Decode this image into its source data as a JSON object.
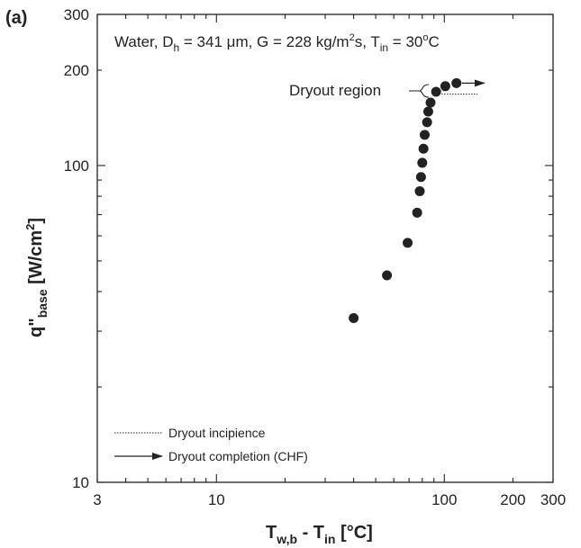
{
  "chart_data": {
    "type": "scatter",
    "panel_label": "(a)",
    "condition_text": {
      "prefix": "Water, D",
      "dh_sub": "h",
      "part2": " = 341 μm, G = 228 kg/m",
      "sup2": "2",
      "part3": "s, T",
      "tin_sub": "in",
      "part4": " = 30",
      "deg_sup": "o",
      "part5": "C"
    },
    "xlabel": {
      "t": "T",
      "sub1": "w,b",
      "mid": " - T",
      "sub2": "in",
      "unit": " [°C]"
    },
    "ylabel": {
      "q": "q\"",
      "sub": "base",
      "unit": " [W/cm",
      "sup": "2",
      "close": "]"
    },
    "x_scale": "log",
    "y_scale": "log",
    "xlim": [
      3,
      300
    ],
    "ylim": [
      10,
      300
    ],
    "x_ticks": [
      3,
      10,
      100,
      200,
      300
    ],
    "x_tick_labels": [
      "3",
      "10",
      "100",
      "200",
      "300"
    ],
    "y_ticks": [
      10,
      100,
      200,
      300
    ],
    "y_tick_labels": [
      "10",
      "100",
      "200",
      "300"
    ],
    "grid": false,
    "series": [
      {
        "points": [
          [
            40,
            33
          ],
          [
            56,
            45
          ],
          [
            69,
            57
          ],
          [
            76,
            71
          ],
          [
            78,
            83
          ],
          [
            79,
            92
          ],
          [
            80,
            102
          ],
          [
            81,
            113
          ],
          [
            82,
            125
          ],
          [
            84,
            137
          ],
          [
            85,
            148
          ],
          [
            87,
            158
          ],
          [
            92,
            171
          ],
          [
            101,
            178
          ],
          [
            113,
            182
          ]
        ]
      }
    ],
    "annotations": {
      "dryout_region_label": "Dryout region",
      "dryout_incipience_y": 168,
      "dryout_incipience_x": [
        92,
        140
      ],
      "chf_arrow_y": 182,
      "chf_arrow_x": [
        113,
        150
      ],
      "region_brace_x": 78
    },
    "legend": {
      "placement": "bottom-left",
      "items": [
        {
          "label": "Dryout incipience",
          "style": "dotted-line"
        },
        {
          "label": "Dryout completion (CHF)",
          "style": "arrow"
        }
      ]
    }
  }
}
